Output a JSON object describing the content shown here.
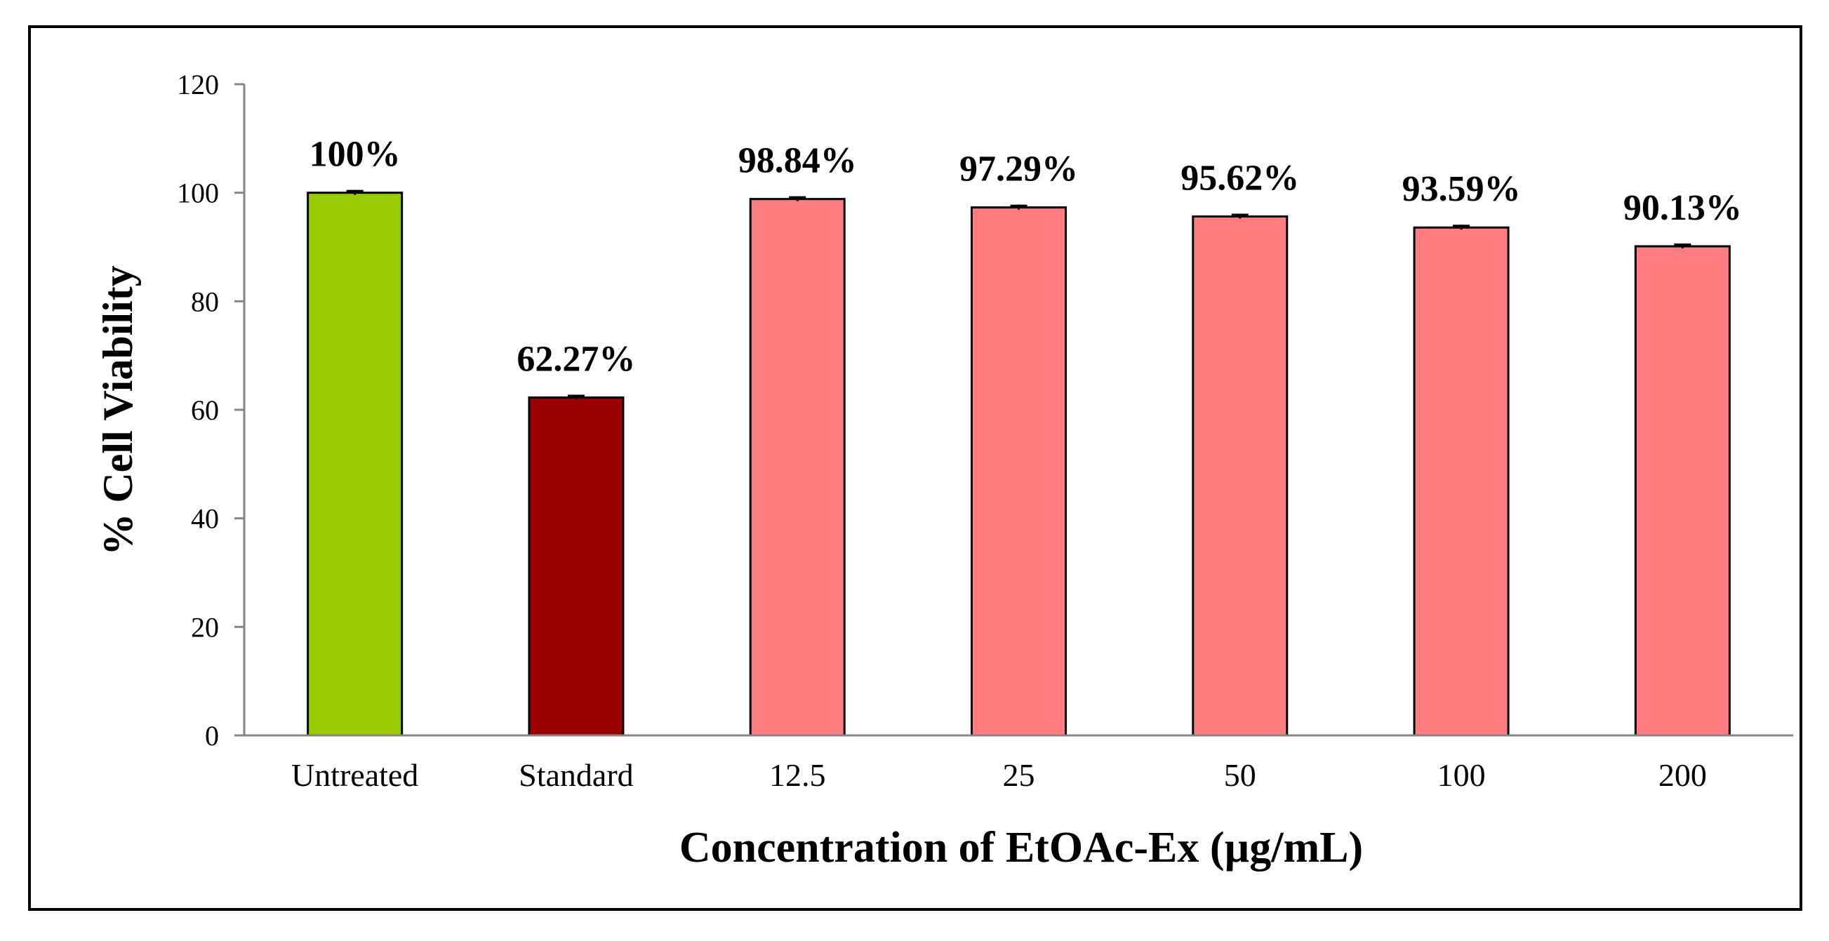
{
  "chart_data": {
    "type": "bar",
    "title": "",
    "xlabel": "Concentration of EtOAc-Ex (µg/mL)",
    "ylabel": "% Cell Viability",
    "ylim": [
      0,
      120
    ],
    "yticks": [
      0,
      20,
      40,
      60,
      80,
      100,
      120
    ],
    "categories": [
      "Untreated",
      "Standard",
      "12.5",
      "25",
      "50",
      "100",
      "200"
    ],
    "values": [
      100,
      62.27,
      98.84,
      97.29,
      95.62,
      93.59,
      90.13
    ],
    "data_labels": [
      "100%",
      "62.27%",
      "98.84%",
      "97.29%",
      "95.62%",
      "93.59%",
      "90.13%"
    ],
    "colors": [
      "#99CC00",
      "#990000",
      "#FF7C80",
      "#FF7C80",
      "#FF7C80",
      "#FF7C80",
      "#FF7C80"
    ],
    "error_bars": true,
    "grid": false,
    "legend": "none"
  }
}
